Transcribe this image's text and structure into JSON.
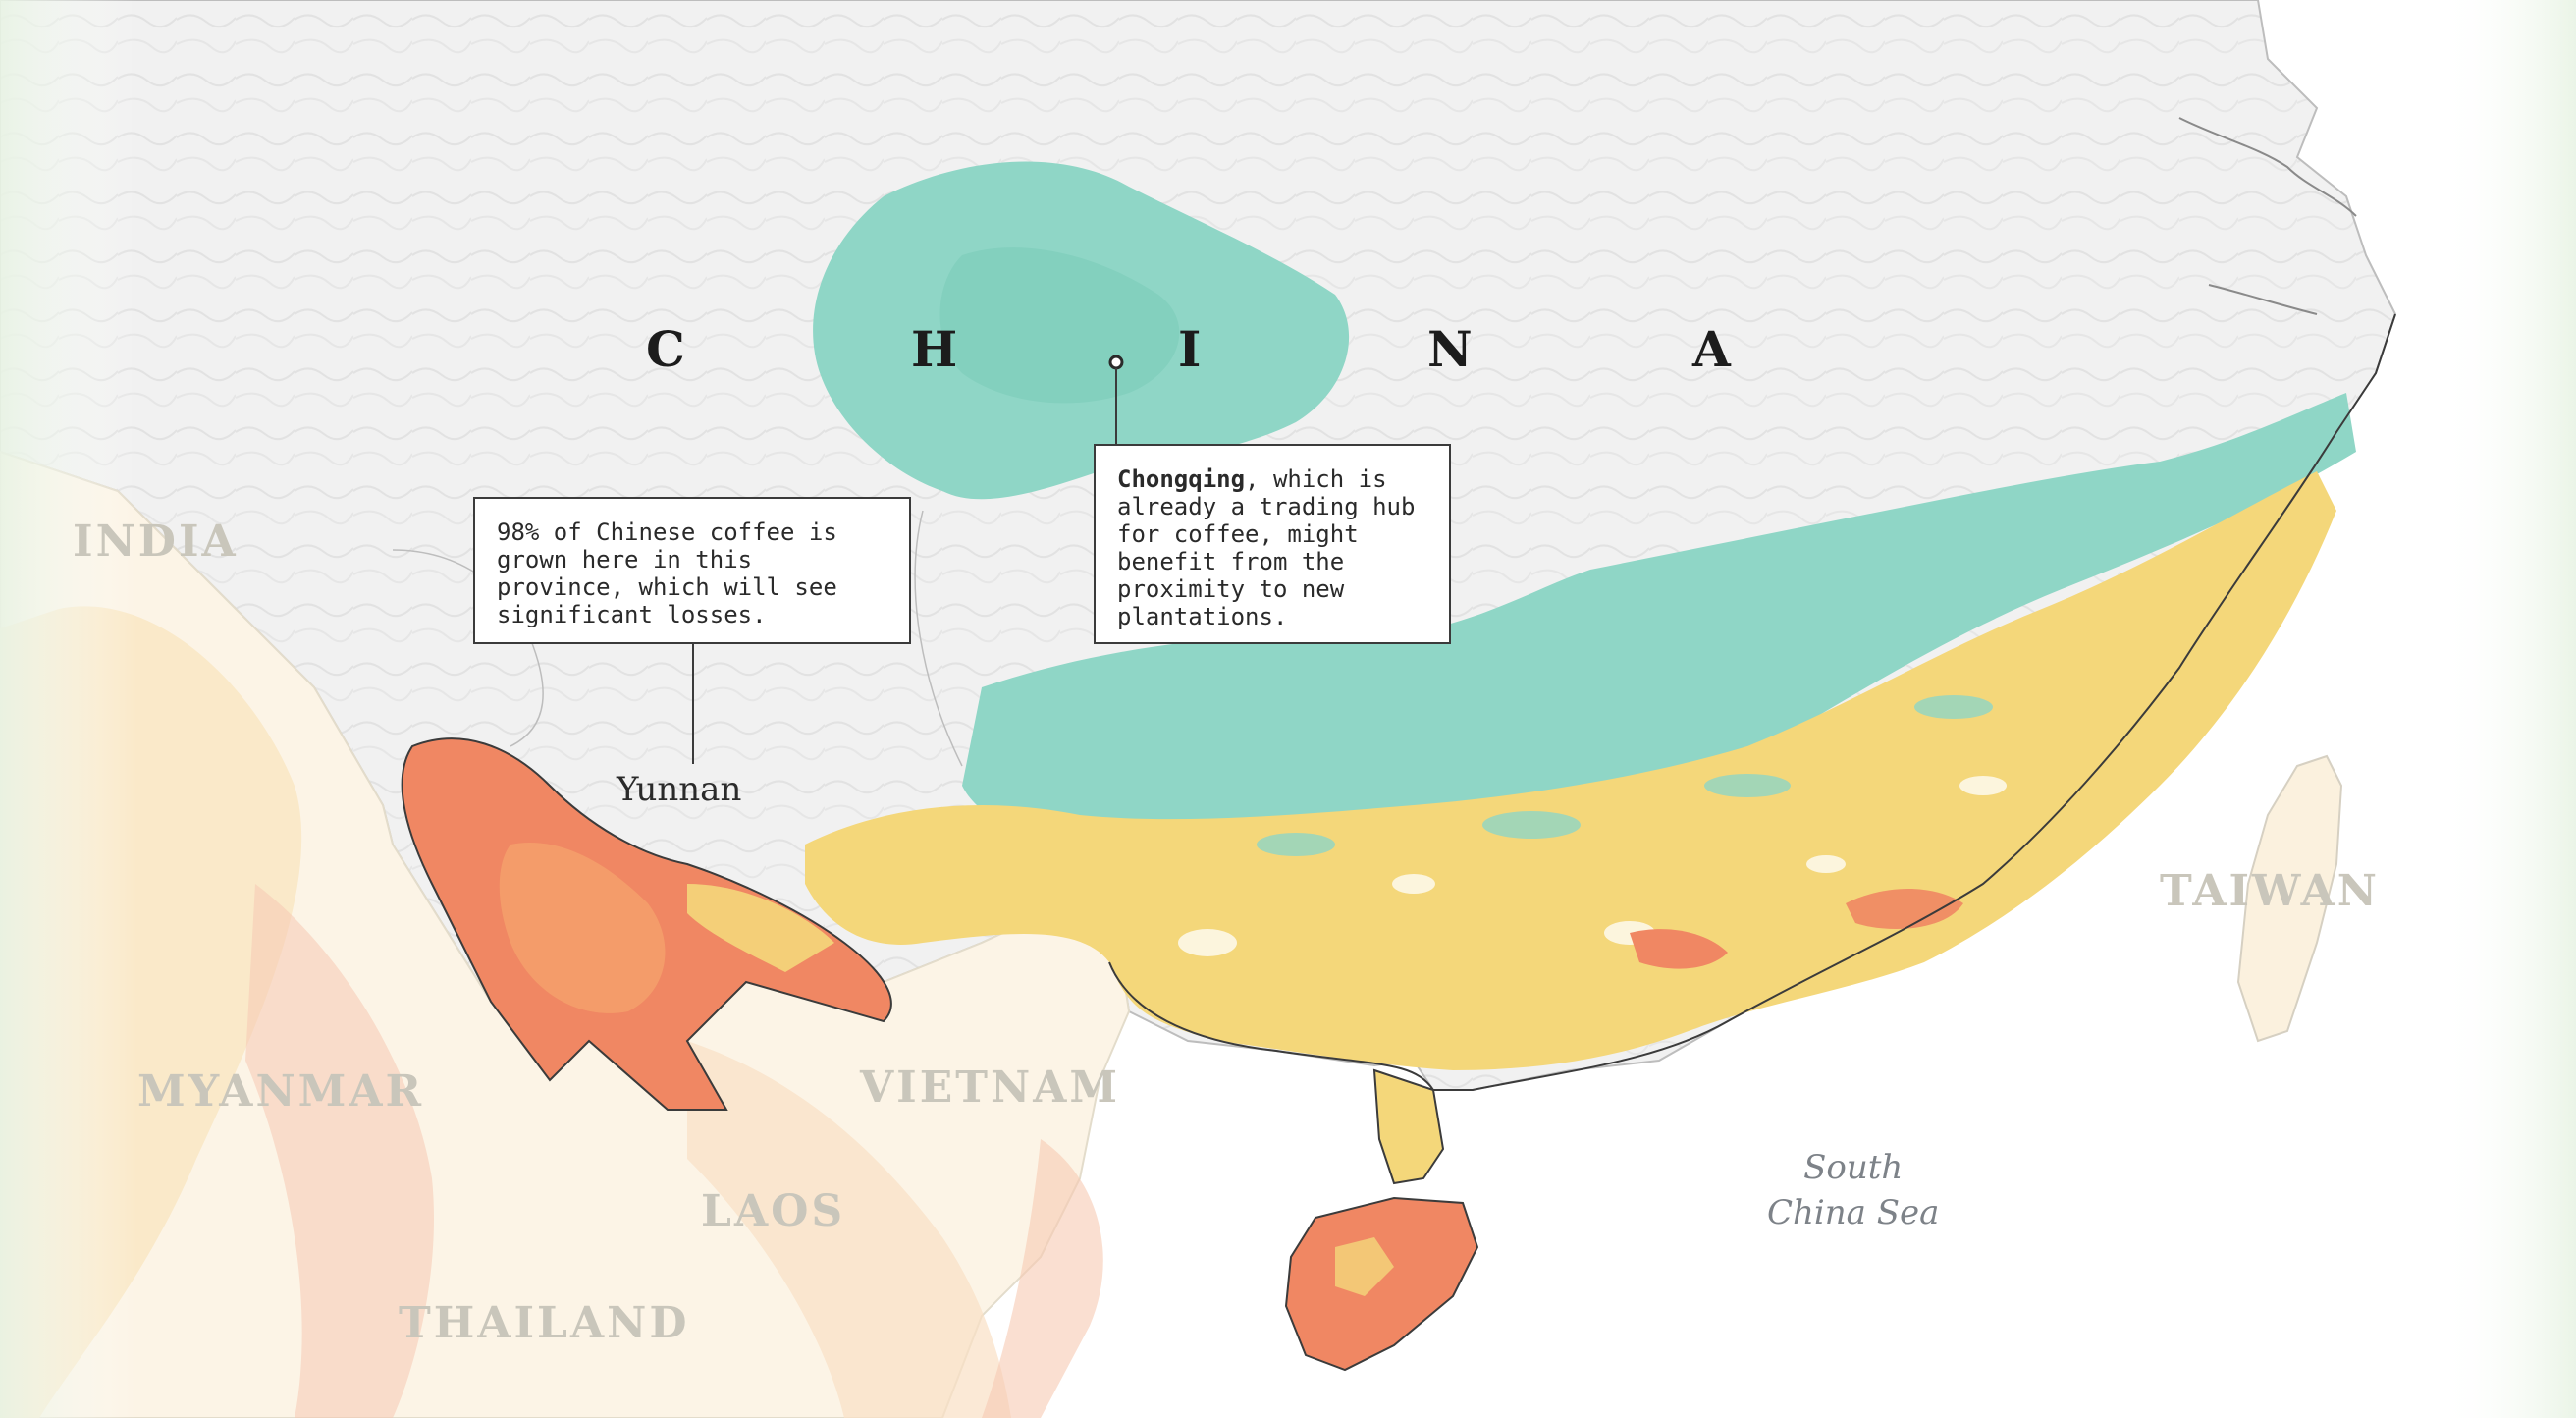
{
  "countries": {
    "india": "INDIA",
    "myanmar": "MYANMAR",
    "vietnam": "VIETNAM",
    "laos": "LAOS",
    "thailand": "THAILAND",
    "taiwan": "TAIWAN"
  },
  "china_letters": [
    "C",
    "H",
    "I",
    "N",
    "A"
  ],
  "places": {
    "yunnan": "Yunnan",
    "sea_line1": "South",
    "sea_line2": "China Sea"
  },
  "annotations": {
    "yunnan_note": "98% of Chinese coffee is grown here in this province, which will see significant losses.",
    "chongqing_name": "Chongqing",
    "chongqing_note": ", which is already a trading hub for coffee, might benefit from the proximity to new plantations."
  },
  "colors": {
    "land": "#efefef",
    "teal_new_suitable": "#8fd6c6",
    "yellow_remains_suitable": "#f4d77a",
    "red_losses": "#f08763",
    "faded_outside": "#fbf1de"
  }
}
